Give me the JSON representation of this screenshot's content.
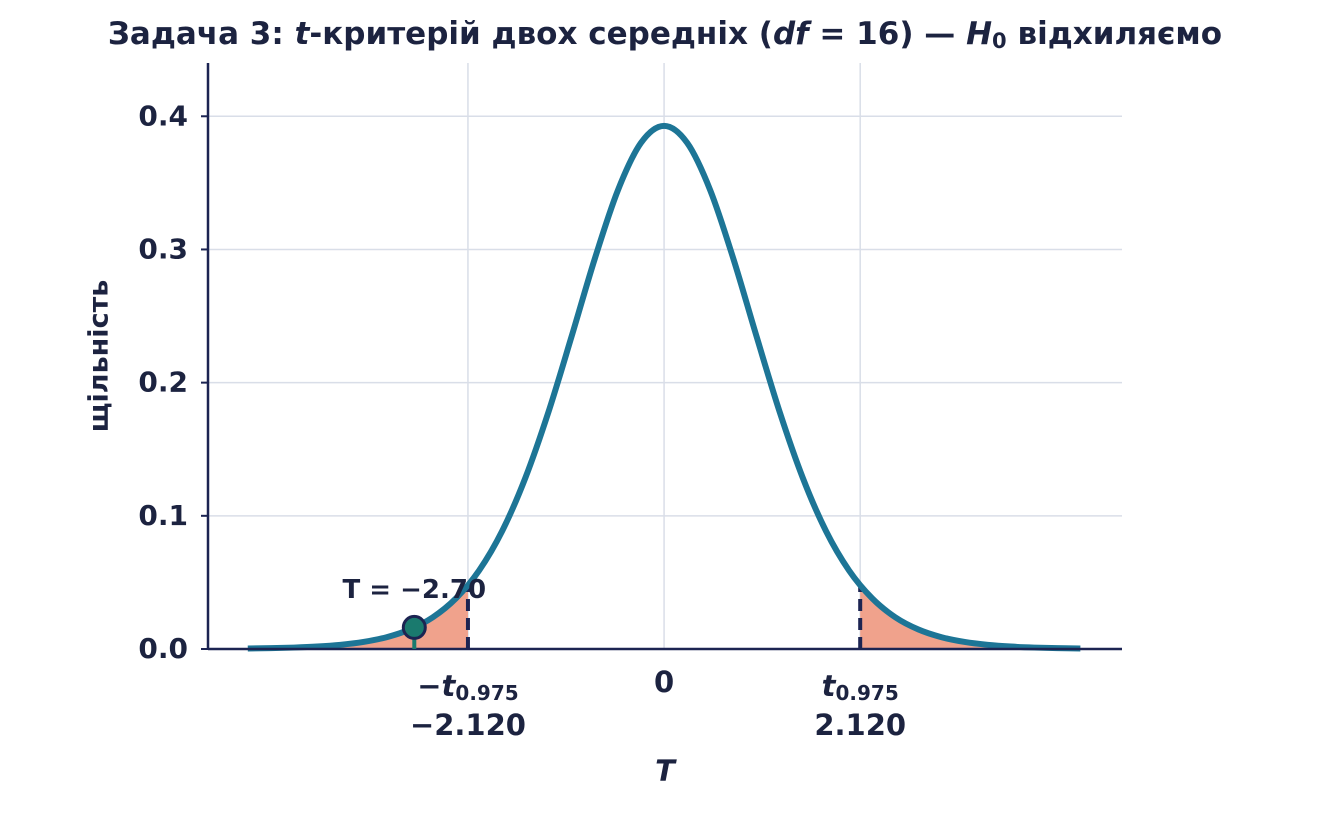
{
  "chart_data": {
    "type": "density",
    "title": [
      "Задача 3: ",
      "t",
      "-критерій двох середніх (",
      "df",
      " = 16) — ",
      "H",
      "0",
      " відхиляємо"
    ],
    "x_label": "T",
    "y_label": "щільність",
    "x": [
      -4.5,
      -4.25,
      -4,
      -3.75,
      -3.5,
      -3.25,
      -3,
      -2.75,
      -2.5,
      -2.25,
      -2,
      -1.75,
      -1.5,
      -1.25,
      -1,
      -0.75,
      -0.5,
      -0.25,
      0,
      0.25,
      0.5,
      0.75,
      1,
      1.25,
      1.5,
      1.75,
      2,
      2.25,
      2.5,
      2.75,
      3,
      3.25,
      3.5,
      3.75,
      4,
      4.25,
      4.5
    ],
    "values": [
      0.00038,
      0.00064,
      0.00108,
      0.00184,
      0.00313,
      0.00528,
      0.00885,
      0.01463,
      0.0238,
      0.038,
      0.0589,
      0.0886,
      0.1284,
      0.1779,
      0.2346,
      0.2928,
      0.3443,
      0.38,
      0.3928,
      0.38,
      0.3443,
      0.2928,
      0.2346,
      0.1779,
      0.1284,
      0.0886,
      0.0589,
      0.038,
      0.0238,
      0.01463,
      0.00885,
      0.00528,
      0.00313,
      0.00184,
      0.00108,
      0.00064,
      0.00038
    ],
    "color": "#1d7596",
    "tail_color": "#f0a28c",
    "critical_color": "#1c2452",
    "point_color": "#1a7a6e",
    "critical_density": 0.048,
    "observed": -2.7,
    "observed_density": 0.0162,
    "observed_label": "T = −2.70",
    "xlim": [
      -4.93,
      4.95
    ],
    "ylim": [
      0,
      0.44
    ],
    "xticks": [
      {
        "value": -2.12,
        "label": "−2.120"
      },
      0,
      {
        "value": 2.12,
        "label": "2.120"
      }
    ],
    "xtick_symbols": [
      {
        "main": "−t",
        "sub": "0.975"
      },
      null,
      {
        "main": "t",
        "sub": "0.975"
      }
    ],
    "yticks": [
      {
        "value": 0,
        "label": "0.0"
      },
      0.1,
      0.2,
      0.3,
      0.4
    ],
    "grid": true
  }
}
